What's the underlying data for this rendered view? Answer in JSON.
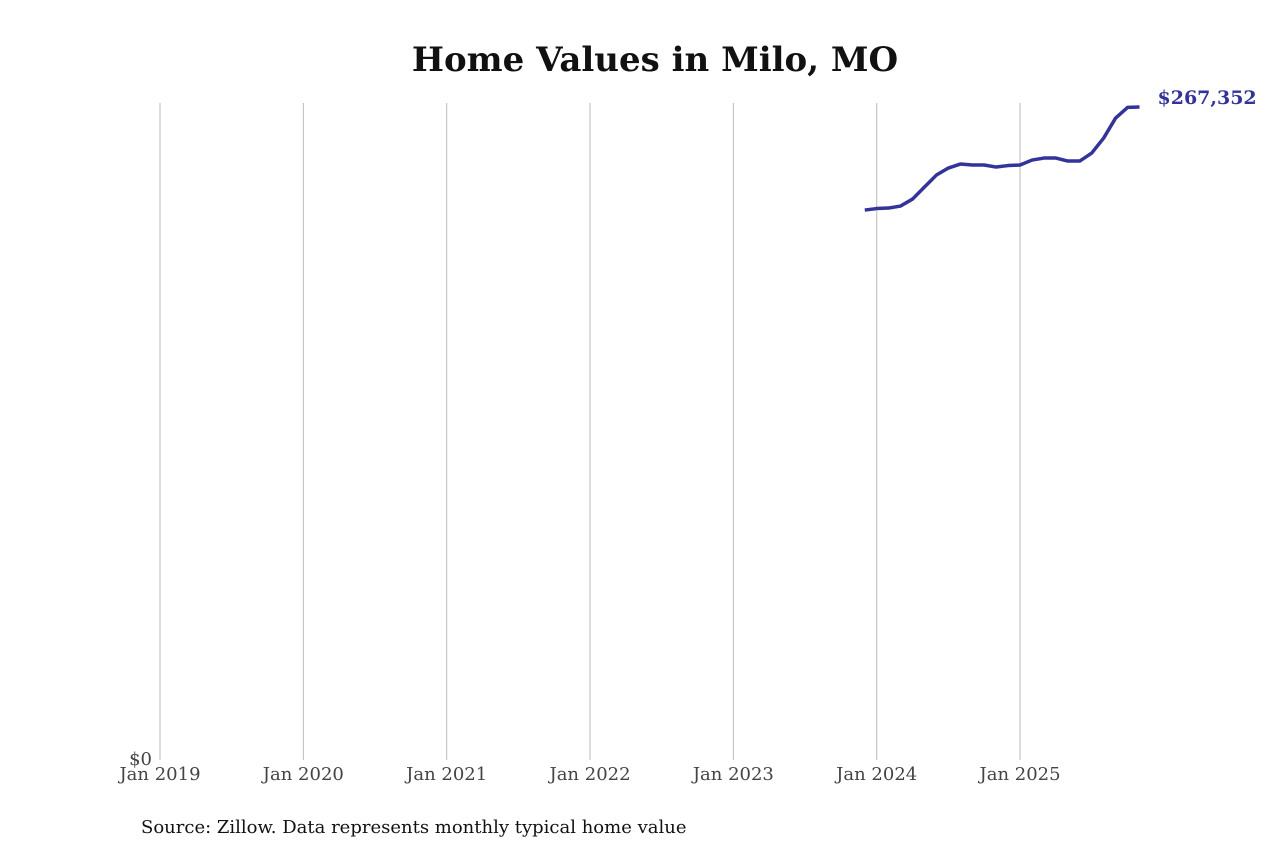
{
  "chart_data": {
    "type": "line",
    "title": "Home Values in Milo, MO",
    "source": "Source: Zillow. Data represents monthly typical home value",
    "x": [
      "2023-12",
      "2024-01",
      "2024-02",
      "2024-03",
      "2024-04",
      "2024-05",
      "2024-06",
      "2024-07",
      "2024-08",
      "2024-09",
      "2024-10",
      "2024-11",
      "2024-12",
      "2025-01",
      "2025-02",
      "2025-03",
      "2025-04",
      "2025-05",
      "2025-06",
      "2025-07",
      "2025-08",
      "2025-09",
      "2025-10",
      "2025-11"
    ],
    "series": [
      {
        "name": "Milo, MO",
        "color": "#33339a",
        "values": [
          225170,
          225780,
          225990,
          226810,
          229670,
          234590,
          239500,
          242370,
          244010,
          243600,
          243600,
          242780,
          243390,
          243600,
          245640,
          246460,
          246460,
          245230,
          245230,
          248510,
          254650,
          262840,
          267200,
          267352
        ],
        "value_labels": [
          null,
          null,
          null,
          null,
          null,
          null,
          null,
          null,
          null,
          null,
          null,
          null,
          null,
          null,
          null,
          null,
          null,
          null,
          null,
          null,
          null,
          null,
          null,
          "$267,352"
        ]
      }
    ],
    "xlim": [
      "2019-01",
      "2025-11"
    ],
    "xticks": [
      {
        "value": "2019-01",
        "label": "Jan 2019"
      },
      {
        "value": "2020-01",
        "label": "Jan 2020"
      },
      {
        "value": "2021-01",
        "label": "Jan 2021"
      },
      {
        "value": "2022-01",
        "label": "Jan 2022"
      },
      {
        "value": "2023-01",
        "label": "Jan 2023"
      },
      {
        "value": "2024-01",
        "label": "Jan 2024"
      },
      {
        "value": "2025-01",
        "label": "Jan 2025"
      }
    ],
    "ylim": [
      0,
      269000
    ],
    "yticks": [
      {
        "value": 0,
        "label": "$0"
      }
    ],
    "grid": "x"
  }
}
